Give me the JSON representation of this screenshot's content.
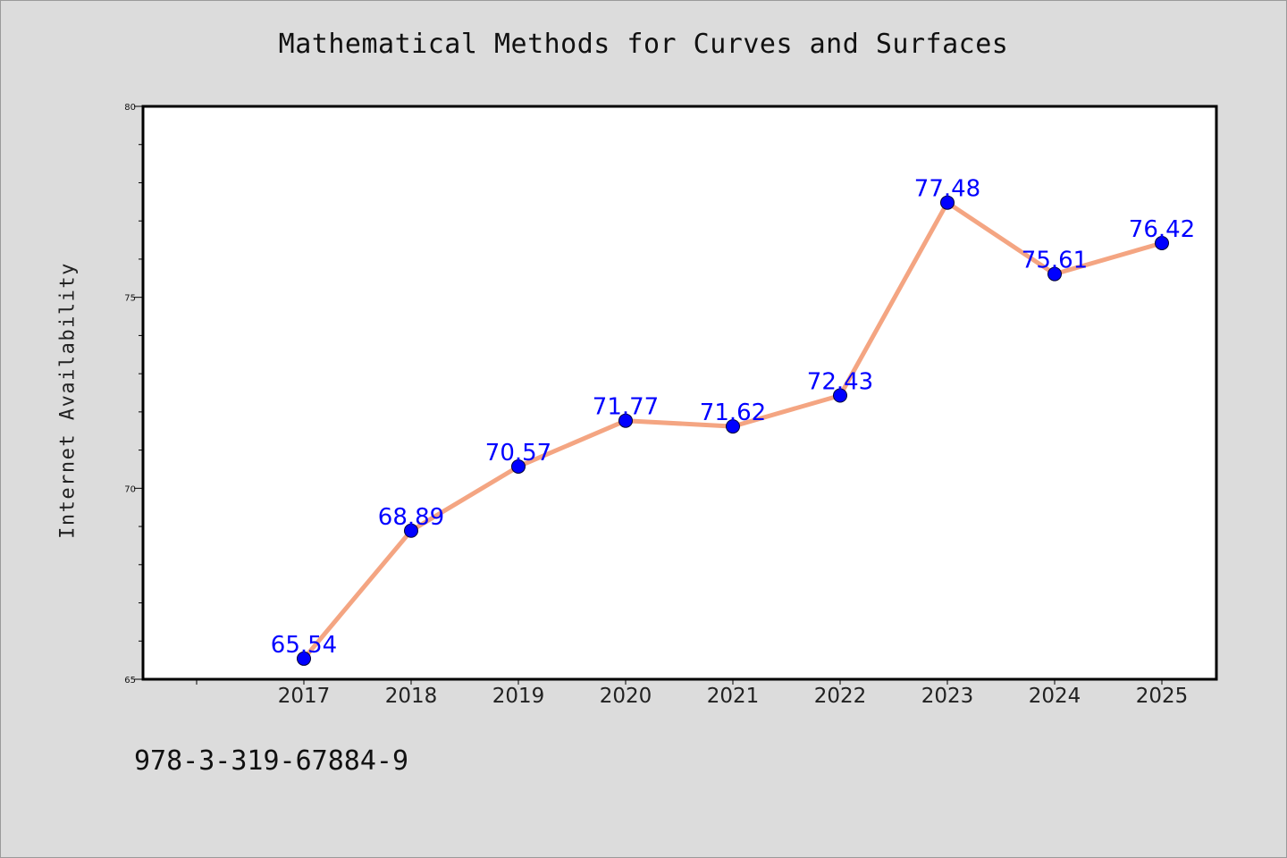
{
  "chart_data": {
    "type": "line",
    "title": "Mathematical Methods for Curves and Surfaces",
    "xlabel": "",
    "ylabel": "Internet Availability",
    "categories": [
      "2017",
      "2018",
      "2019",
      "2020",
      "2021",
      "2022",
      "2023",
      "2024",
      "2025"
    ],
    "values": [
      65.54,
      68.89,
      70.57,
      71.77,
      71.62,
      72.43,
      77.48,
      75.61,
      76.42
    ],
    "data_labels": [
      "65.54",
      "68.89",
      "70.57",
      "71.77",
      "71.62",
      "72.43",
      "77.48",
      "75.61",
      "76.42"
    ],
    "ylim": [
      65,
      80
    ],
    "y_ticks": [
      65,
      70,
      75,
      80
    ],
    "grid": false,
    "legend": "none",
    "colors": {
      "line": "#f4a582",
      "marker": "#0000ff",
      "label": "#0000ff",
      "background": "#dcdcdc",
      "plot_area": "#ffffff"
    }
  },
  "footer": {
    "isbn": "978-3-319-67884-9"
  }
}
